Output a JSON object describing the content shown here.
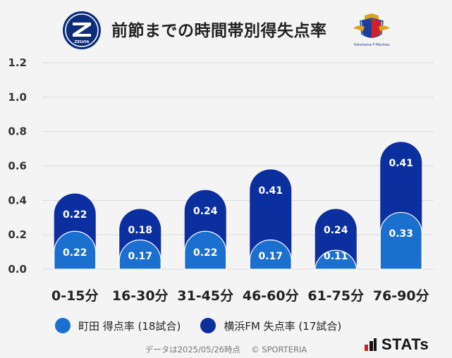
{
  "title": "前節までの時間帯別得失点率",
  "left_logo": {
    "icon": "zelvia-crest-icon",
    "text": "ZELVIA"
  },
  "right_logo": {
    "icon": "marinos-crest-icon",
    "text": "Yokohama F·Marinos"
  },
  "colors": {
    "front": "#1b6fcf",
    "back": "#0b2f9e",
    "grid": "#d9d9d9",
    "label": "#ffffff"
  },
  "chart_data": {
    "type": "bar",
    "title": "前節までの時間帯別得失点率",
    "categories": [
      "0-15分",
      "16-30分",
      "31-45分",
      "46-60分",
      "61-75分",
      "76-90分"
    ],
    "series": [
      {
        "name": "町田 得点率 (18試合)",
        "values": [
          0.22,
          0.17,
          0.22,
          0.17,
          0.11,
          0.33
        ]
      },
      {
        "name": "横浜FM 失点率 (17試合)",
        "values": [
          0.22,
          0.18,
          0.24,
          0.41,
          0.24,
          0.41
        ]
      }
    ],
    "value_labels": {
      "front": [
        "0.22",
        "0.17",
        "0.22",
        "0.17",
        "0.11",
        "0.33"
      ],
      "back": [
        "0.22",
        "0.18",
        "0.24",
        "0.41",
        "0.24",
        "0.41"
      ]
    },
    "yticks": [
      "0.0",
      "0.2",
      "0.4",
      "0.6",
      "0.8",
      "1.0",
      "1.2"
    ],
    "ylim": [
      0,
      1.2
    ],
    "grid": true,
    "legend_position": "bottom"
  },
  "legend": {
    "front_label": "町田 得点率 (18試合)",
    "back_label": "横浜FM 失点率 (17試合)"
  },
  "footer": "データは2025/05/26時点 　© SPORTERIA",
  "brand": {
    "icon": "stats-logo-icon",
    "text": "STATs"
  }
}
